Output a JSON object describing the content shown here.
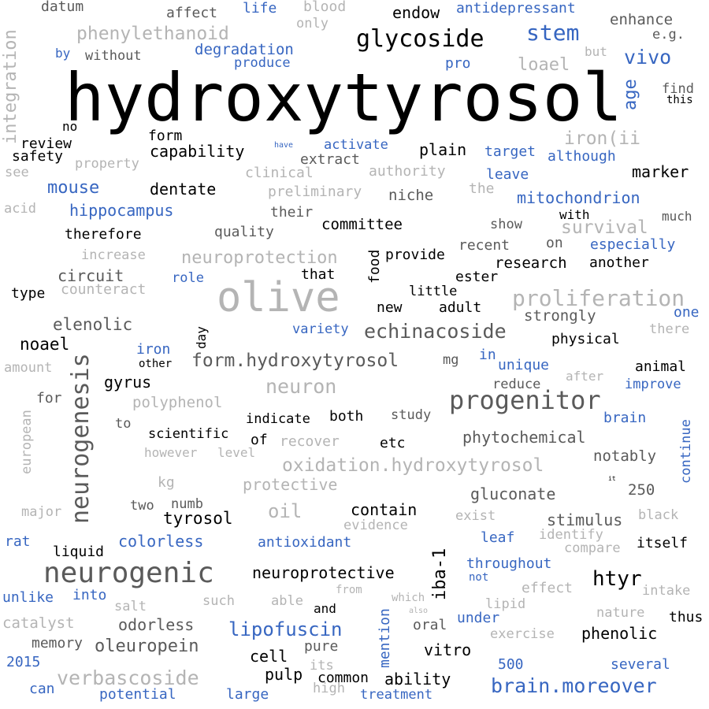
{
  "colors": {
    "black": "#000000",
    "dark_gray": "#5a5a5a",
    "light_gray": "#b4b4b4",
    "blue": "#3766c1"
  },
  "words": [
    {
      "text": "hydroxytyrosol",
      "tone": "black"
    },
    {
      "text": "olive",
      "tone": "light_gray"
    },
    {
      "text": "neurogenic",
      "tone": "dark_gray"
    },
    {
      "text": "neurogenesis",
      "tone": "dark_gray"
    },
    {
      "text": "progenitor",
      "tone": "dark_gray"
    },
    {
      "text": "glycoside",
      "tone": "black"
    },
    {
      "text": "proliferation",
      "tone": "light_gray"
    },
    {
      "text": "stem",
      "tone": "blue"
    },
    {
      "text": "brain.moreover",
      "tone": "blue"
    },
    {
      "text": "echinacoside",
      "tone": "dark_gray"
    },
    {
      "text": "form.hydroxytyrosol",
      "tone": "dark_gray"
    },
    {
      "text": "oxidation.hydroxytyrosol",
      "tone": "light_gray"
    },
    {
      "text": "neuron",
      "tone": "light_gray"
    },
    {
      "text": "verbascoside",
      "tone": "light_gray"
    },
    {
      "text": "oleuropein",
      "tone": "dark_gray"
    },
    {
      "text": "lipofuscin",
      "tone": "blue"
    },
    {
      "text": "htyr",
      "tone": "black"
    },
    {
      "text": "phenylethanoid",
      "tone": "light_gray"
    },
    {
      "text": "neuroprotection",
      "tone": "light_gray"
    },
    {
      "text": "oil",
      "tone": "light_gray"
    },
    {
      "text": "vivo",
      "tone": "blue"
    },
    {
      "text": "iba-1",
      "tone": "black"
    },
    {
      "text": "mouse",
      "tone": "blue"
    },
    {
      "text": "survival",
      "tone": "light_gray"
    },
    {
      "text": "iron(ii",
      "tone": "light_gray"
    },
    {
      "text": "integration",
      "tone": "light_gray"
    },
    {
      "text": "age",
      "tone": "blue"
    },
    {
      "text": "endow",
      "tone": "black"
    },
    {
      "text": "elenolic",
      "tone": "dark_gray"
    },
    {
      "text": "noael",
      "tone": "black"
    },
    {
      "text": "tyrosol",
      "tone": "black"
    },
    {
      "text": "contain",
      "tone": "black"
    },
    {
      "text": "phytochemical",
      "tone": "dark_gray"
    },
    {
      "text": "gluconate",
      "tone": "dark_gray"
    },
    {
      "text": "stimulus",
      "tone": "dark_gray"
    },
    {
      "text": "neuroprotective",
      "tone": "black"
    },
    {
      "text": "loael",
      "tone": "light_gray"
    },
    {
      "text": "circuit",
      "tone": "dark_gray"
    },
    {
      "text": "phenolic",
      "tone": "black"
    },
    {
      "text": "odorless",
      "tone": "dark_gray"
    },
    {
      "text": "colorless",
      "tone": "blue"
    },
    {
      "text": "antioxidant",
      "tone": "blue"
    },
    {
      "text": "mitochondrion",
      "tone": "blue"
    },
    {
      "text": "hippocampus",
      "tone": "blue"
    },
    {
      "text": "capability",
      "tone": "black"
    },
    {
      "text": "dentate",
      "tone": "black"
    },
    {
      "text": "gyrus",
      "tone": "black"
    },
    {
      "text": "plain",
      "tone": "black"
    },
    {
      "text": "degradation",
      "tone": "blue"
    },
    {
      "text": "antidepressant",
      "tone": "blue"
    },
    {
      "text": "committee",
      "tone": "black"
    },
    {
      "text": "research",
      "tone": "black"
    },
    {
      "text": "strongly",
      "tone": "dark_gray"
    },
    {
      "text": "notably",
      "tone": "dark_gray"
    },
    {
      "text": "polyphenol",
      "tone": "light_gray"
    },
    {
      "text": "protective",
      "tone": "light_gray"
    },
    {
      "text": "variety",
      "tone": "blue"
    },
    {
      "text": "unique",
      "tone": "blue"
    },
    {
      "text": "improve",
      "tone": "blue"
    },
    {
      "text": "continue",
      "tone": "blue"
    },
    {
      "text": "throughout",
      "tone": "blue"
    },
    {
      "text": "potential",
      "tone": "blue"
    },
    {
      "text": "treatment",
      "tone": "blue"
    },
    {
      "text": "several",
      "tone": "blue"
    },
    {
      "text": "especially",
      "tone": "blue"
    },
    {
      "text": "although",
      "tone": "blue"
    },
    {
      "text": "activate",
      "tone": "blue"
    },
    {
      "text": "target",
      "tone": "blue"
    },
    {
      "text": "leave",
      "tone": "blue"
    },
    {
      "text": "produce",
      "tone": "blue"
    },
    {
      "text": "life",
      "tone": "blue"
    },
    {
      "text": "pro",
      "tone": "blue"
    },
    {
      "text": "by",
      "tone": "blue"
    },
    {
      "text": "role",
      "tone": "blue"
    },
    {
      "text": "iron",
      "tone": "blue"
    },
    {
      "text": "in",
      "tone": "blue"
    },
    {
      "text": "one",
      "tone": "blue"
    },
    {
      "text": "brain",
      "tone": "blue"
    },
    {
      "text": "rat",
      "tone": "blue"
    },
    {
      "text": "leaf",
      "tone": "blue"
    },
    {
      "text": "unlike",
      "tone": "blue"
    },
    {
      "text": "into",
      "tone": "blue"
    },
    {
      "text": "not",
      "tone": "blue"
    },
    {
      "text": "under",
      "tone": "blue"
    },
    {
      "text": "mention",
      "tone": "blue"
    },
    {
      "text": "2015",
      "tone": "blue"
    },
    {
      "text": "can",
      "tone": "blue"
    },
    {
      "text": "large",
      "tone": "blue"
    },
    {
      "text": "500",
      "tone": "blue"
    },
    {
      "text": "have",
      "tone": "blue"
    },
    {
      "text": "marker",
      "tone": "black"
    },
    {
      "text": "another",
      "tone": "black"
    },
    {
      "text": "provide",
      "tone": "black"
    },
    {
      "text": "little",
      "tone": "black"
    },
    {
      "text": "ester",
      "tone": "black"
    },
    {
      "text": "adult",
      "tone": "black"
    },
    {
      "text": "new",
      "tone": "black"
    },
    {
      "text": "physical",
      "tone": "black"
    },
    {
      "text": "animal",
      "tone": "black"
    },
    {
      "text": "indicate",
      "tone": "black"
    },
    {
      "text": "both",
      "tone": "black"
    },
    {
      "text": "scientific",
      "tone": "black"
    },
    {
      "text": "of",
      "tone": "black"
    },
    {
      "text": "etc",
      "tone": "black"
    },
    {
      "text": "that",
      "tone": "black"
    },
    {
      "text": "food",
      "tone": "black"
    },
    {
      "text": "with",
      "tone": "black"
    },
    {
      "text": "type",
      "tone": "black"
    },
    {
      "text": "therefore",
      "tone": "black"
    },
    {
      "text": "review",
      "tone": "black"
    },
    {
      "text": "safety",
      "tone": "black"
    },
    {
      "text": "form",
      "tone": "black"
    },
    {
      "text": "no",
      "tone": "black"
    },
    {
      "text": "this",
      "tone": "black"
    },
    {
      "text": "day",
      "tone": "black"
    },
    {
      "text": "other",
      "tone": "black"
    },
    {
      "text": "liquid",
      "tone": "black"
    },
    {
      "text": "itself",
      "tone": "black"
    },
    {
      "text": "thus",
      "tone": "black"
    },
    {
      "text": "vitro",
      "tone": "black"
    },
    {
      "text": "cell",
      "tone": "black"
    },
    {
      "text": "pulp",
      "tone": "black"
    },
    {
      "text": "common",
      "tone": "black"
    },
    {
      "text": "ability",
      "tone": "black"
    },
    {
      "text": "and",
      "tone": "black"
    },
    {
      "text": "it",
      "tone": "black"
    },
    {
      "text": "enhance",
      "tone": "dark_gray"
    },
    {
      "text": "e.g.",
      "tone": "dark_gray"
    },
    {
      "text": "find",
      "tone": "dark_gray"
    },
    {
      "text": "affect",
      "tone": "dark_gray"
    },
    {
      "text": "datum",
      "tone": "dark_gray"
    },
    {
      "text": "without",
      "tone": "dark_gray"
    },
    {
      "text": "extract",
      "tone": "dark_gray"
    },
    {
      "text": "niche",
      "tone": "dark_gray"
    },
    {
      "text": "their",
      "tone": "dark_gray"
    },
    {
      "text": "quality",
      "tone": "dark_gray"
    },
    {
      "text": "recent",
      "tone": "dark_gray"
    },
    {
      "text": "on",
      "tone": "dark_gray"
    },
    {
      "text": "show",
      "tone": "dark_gray"
    },
    {
      "text": "much",
      "tone": "dark_gray"
    },
    {
      "text": "reduce",
      "tone": "dark_gray"
    },
    {
      "text": "mg",
      "tone": "dark_gray"
    },
    {
      "text": "study",
      "tone": "dark_gray"
    },
    {
      "text": "for",
      "tone": "dark_gray"
    },
    {
      "text": "to",
      "tone": "dark_gray"
    },
    {
      "text": "two",
      "tone": "dark_gray"
    },
    {
      "text": "numb",
      "tone": "dark_gray"
    },
    {
      "text": "250",
      "tone": "dark_gray"
    },
    {
      "text": "memory",
      "tone": "dark_gray"
    },
    {
      "text": "oral",
      "tone": "dark_gray"
    },
    {
      "text": "pure",
      "tone": "dark_gray"
    },
    {
      "text": "blood",
      "tone": "light_gray"
    },
    {
      "text": "only",
      "tone": "light_gray"
    },
    {
      "text": "but",
      "tone": "light_gray"
    },
    {
      "text": "property",
      "tone": "light_gray"
    },
    {
      "text": "see",
      "tone": "light_gray"
    },
    {
      "text": "acid",
      "tone": "light_gray"
    },
    {
      "text": "clinical",
      "tone": "light_gray"
    },
    {
      "text": "authority",
      "tone": "light_gray"
    },
    {
      "text": "the",
      "tone": "light_gray"
    },
    {
      "text": "preliminary",
      "tone": "light_gray"
    },
    {
      "text": "increase",
      "tone": "light_gray"
    },
    {
      "text": "counteract",
      "tone": "light_gray"
    },
    {
      "text": "there",
      "tone": "light_gray"
    },
    {
      "text": "amount",
      "tone": "light_gray"
    },
    {
      "text": "after",
      "tone": "light_gray"
    },
    {
      "text": "european",
      "tone": "light_gray"
    },
    {
      "text": "recover",
      "tone": "light_gray"
    },
    {
      "text": "however",
      "tone": "light_gray"
    },
    {
      "text": "level",
      "tone": "light_gray"
    },
    {
      "text": "kg",
      "tone": "light_gray"
    },
    {
      "text": "major",
      "tone": "light_gray"
    },
    {
      "text": "evidence",
      "tone": "light_gray"
    },
    {
      "text": "exist",
      "tone": "light_gray"
    },
    {
      "text": "black",
      "tone": "light_gray"
    },
    {
      "text": "identify",
      "tone": "light_gray"
    },
    {
      "text": "compare",
      "tone": "light_gray"
    },
    {
      "text": "effect",
      "tone": "light_gray"
    },
    {
      "text": "intake",
      "tone": "light_gray"
    },
    {
      "text": "from",
      "tone": "light_gray"
    },
    {
      "text": "which",
      "tone": "light_gray"
    },
    {
      "text": "also",
      "tone": "light_gray"
    },
    {
      "text": "salt",
      "tone": "light_gray"
    },
    {
      "text": "such",
      "tone": "light_gray"
    },
    {
      "text": "able",
      "tone": "light_gray"
    },
    {
      "text": "lipid",
      "tone": "light_gray"
    },
    {
      "text": "nature",
      "tone": "light_gray"
    },
    {
      "text": "catalyst",
      "tone": "light_gray"
    },
    {
      "text": "exercise",
      "tone": "light_gray"
    },
    {
      "text": "its",
      "tone": "light_gray"
    },
    {
      "text": "high",
      "tone": "light_gray"
    }
  ]
}
